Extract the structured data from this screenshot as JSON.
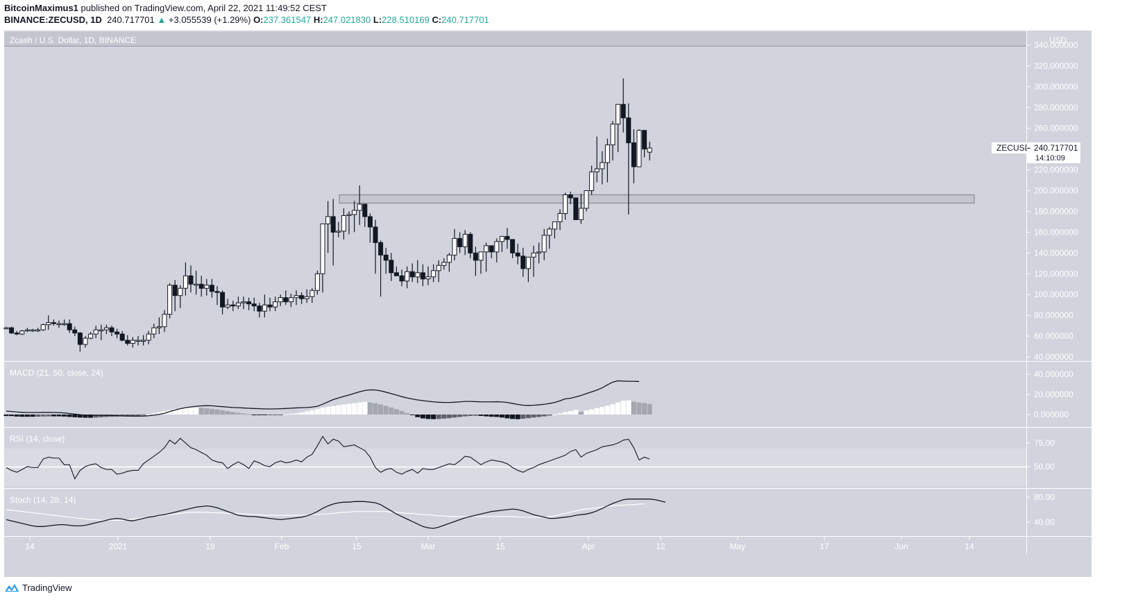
{
  "header": {
    "publisher": "BitcoinMaximus1",
    "published_text": "published on TradingView.com, April 22, 2021 11:49:52 CEST",
    "symbol_line": "BINANCE:ZECUSD, 1D",
    "last": "240.717701",
    "change": "+3.055539 (+1.29%)",
    "o_label": "O:",
    "o": "237.361547",
    "h_label": "H:",
    "h": "247.021830",
    "l_label": "L:",
    "l": "228.510169",
    "c_label": "C:",
    "c": "240.717701"
  },
  "chart": {
    "title": "Zcash / U.S. Dollar, 1D, BINANCE",
    "currency": "USD",
    "price_tag": {
      "symbol": "ZECUSD",
      "value": "240.717701",
      "countdown": "14:10:09"
    }
  },
  "footer": {
    "brand": "TradingView"
  },
  "colors": {
    "background": "#d1d4dc",
    "up_body": "#ffffff",
    "down_body": "#131722",
    "wick": "#131722",
    "zone_fill": "#c3c6cf",
    "zone_stroke": "#8a8c93"
  },
  "chart_data": [
    {
      "type": "candlestick",
      "title": "Zcash / U.S. Dollar, 1D, BINANCE",
      "ylabel": "USD",
      "ylim": [
        40,
        340
      ],
      "y_ticks": [
        "340.000000",
        "320.000000",
        "300.000000",
        "280.000000",
        "260.000000",
        "240.000000",
        "220.000000",
        "200.000000",
        "180.000000",
        "160.000000",
        "140.000000",
        "120.000000",
        "100.000000",
        "80.000000",
        "60.000000",
        "40.000000"
      ],
      "x_ticks": [
        "14",
        "2021",
        "18",
        "Feb",
        "15",
        "Mar",
        "15",
        "Apr",
        "12",
        "May",
        "17",
        "Jun",
        "14"
      ],
      "horizontal_zone": {
        "from": 188,
        "to": 196,
        "start": "Feb 11",
        "end": "Jun 15"
      },
      "start_date": "2020-12-11",
      "ohlc": [
        [
          68,
          69,
          67,
          68
        ],
        [
          68,
          69,
          62,
          63
        ],
        [
          63,
          65,
          61,
          62
        ],
        [
          62,
          66,
          61,
          65
        ],
        [
          65,
          68,
          64,
          66
        ],
        [
          66,
          67,
          64,
          66
        ],
        [
          66,
          68,
          64,
          66
        ],
        [
          66,
          72,
          65,
          71
        ],
        [
          71,
          80,
          66,
          73
        ],
        [
          73,
          76,
          70,
          72
        ],
        [
          72,
          75,
          68,
          72
        ],
        [
          72,
          76,
          70,
          72
        ],
        [
          72,
          76,
          63,
          66
        ],
        [
          66,
          69,
          60,
          63
        ],
        [
          63,
          64,
          45,
          52
        ],
        [
          52,
          60,
          49,
          58
        ],
        [
          58,
          64,
          57,
          62
        ],
        [
          62,
          70,
          58,
          66
        ],
        [
          66,
          71,
          56,
          66
        ],
        [
          66,
          71,
          62,
          68
        ],
        [
          68,
          70,
          60,
          64
        ],
        [
          64,
          67,
          58,
          62
        ],
        [
          62,
          65,
          55,
          56
        ],
        [
          56,
          61,
          51,
          53
        ],
        [
          53,
          59,
          49,
          56
        ],
        [
          56,
          60,
          51,
          56
        ],
        [
          56,
          61,
          51,
          56
        ],
        [
          56,
          65,
          52,
          62
        ],
        [
          62,
          72,
          58,
          68
        ],
        [
          68,
          78,
          62,
          69
        ],
        [
          69,
          85,
          64,
          81
        ],
        [
          81,
          111,
          77,
          109
        ],
        [
          109,
          114,
          84,
          99
        ],
        [
          99,
          109,
          87,
          106
        ],
        [
          106,
          131,
          99,
          118
        ],
        [
          118,
          128,
          102,
          110
        ],
        [
          110,
          123,
          100,
          110
        ],
        [
          110,
          118,
          98,
          106
        ],
        [
          106,
          115,
          99,
          109
        ],
        [
          109,
          115,
          97,
          103
        ],
        [
          103,
          108,
          90,
          102
        ],
        [
          102,
          104,
          81,
          88
        ],
        [
          88,
          96,
          86,
          90
        ],
        [
          90,
          94,
          84,
          89
        ],
        [
          89,
          98,
          86,
          92
        ],
        [
          92,
          98,
          86,
          93
        ],
        [
          93,
          97,
          85,
          91
        ],
        [
          91,
          97,
          84,
          89
        ],
        [
          89,
          92,
          78,
          84
        ],
        [
          84,
          100,
          78,
          90
        ],
        [
          90,
          97,
          84,
          88
        ],
        [
          88,
          98,
          84,
          93
        ],
        [
          93,
          100,
          89,
          97
        ],
        [
          97,
          104,
          90,
          93
        ],
        [
          93,
          101,
          88,
          97
        ],
        [
          97,
          104,
          90,
          99
        ],
        [
          99,
          102,
          91,
          96
        ],
        [
          96,
          105,
          92,
          98
        ],
        [
          98,
          106,
          92,
          104
        ],
        [
          104,
          123,
          100,
          120
        ],
        [
          120,
          148,
          102,
          168
        ],
        [
          168,
          190,
          140,
          175
        ],
        [
          175,
          192,
          128,
          160
        ],
        [
          160,
          170,
          155,
          161
        ],
        [
          161,
          183,
          153,
          176
        ],
        [
          176,
          180,
          158,
          177
        ],
        [
          177,
          190,
          160,
          181
        ],
        [
          181,
          205,
          167,
          187
        ],
        [
          187,
          186,
          165,
          175
        ],
        [
          175,
          178,
          150,
          165
        ],
        [
          165,
          172,
          120,
          150
        ],
        [
          150,
          152,
          98,
          138
        ],
        [
          138,
          145,
          120,
          133
        ],
        [
          133,
          140,
          113,
          121
        ],
        [
          121,
          127,
          118,
          118
        ],
        [
          118,
          124,
          108,
          113
        ],
        [
          113,
          127,
          106,
          122
        ],
        [
          122,
          130,
          112,
          117
        ],
        [
          117,
          133,
          111,
          121
        ],
        [
          121,
          129,
          108,
          115
        ],
        [
          115,
          127,
          109,
          117
        ],
        [
          117,
          129,
          112,
          123
        ],
        [
          123,
          133,
          112,
          128
        ],
        [
          128,
          135,
          124,
          131
        ],
        [
          131,
          140,
          122,
          138
        ],
        [
          138,
          163,
          133,
          154
        ],
        [
          154,
          160,
          140,
          146
        ],
        [
          146,
          162,
          138,
          158
        ],
        [
          158,
          160,
          135,
          140
        ],
        [
          140,
          146,
          118,
          133
        ],
        [
          133,
          140,
          120,
          141
        ],
        [
          141,
          150,
          122,
          147
        ],
        [
          147,
          145,
          135,
          141
        ],
        [
          141,
          154,
          131,
          151
        ],
        [
          151,
          155,
          141,
          156
        ],
        [
          156,
          164,
          144,
          153
        ],
        [
          153,
          152,
          135,
          140
        ],
        [
          140,
          149,
          129,
          137
        ],
        [
          137,
          145,
          117,
          125
        ],
        [
          125,
          134,
          112,
          136
        ],
        [
          136,
          147,
          117,
          140
        ],
        [
          140,
          150,
          130,
          141
        ],
        [
          141,
          163,
          133,
          157
        ],
        [
          157,
          165,
          144,
          163
        ],
        [
          163,
          168,
          154,
          170
        ],
        [
          170,
          182,
          162,
          178
        ],
        [
          178,
          198,
          172,
          196
        ],
        [
          196,
          199,
          187,
          193
        ],
        [
          193,
          185,
          172,
          172
        ],
        [
          172,
          197,
          168,
          183
        ],
        [
          183,
          200,
          180,
          200
        ],
        [
          200,
          224,
          196,
          218
        ],
        [
          218,
          252,
          208,
          221
        ],
        [
          221,
          238,
          206,
          227
        ],
        [
          227,
          250,
          208,
          244
        ],
        [
          244,
          267,
          229,
          264
        ],
        [
          264,
          280,
          237,
          283
        ],
        [
          283,
          308,
          256,
          270
        ],
        [
          270,
          284,
          177,
          246
        ],
        [
          246,
          259,
          207,
          223
        ],
        [
          223,
          259,
          228,
          258
        ],
        [
          258,
          256,
          232,
          240
        ],
        [
          237,
          247,
          229,
          241
        ]
      ]
    },
    {
      "type": "line+histogram",
      "title": "MACD (21, 50, close, 24)",
      "y_ticks": [
        "40.000000",
        "20.000000",
        "0.000000"
      ],
      "ylim": [
        -5,
        42
      ],
      "macd_line": [
        3.5,
        3.0,
        2.5,
        2.2,
        2.0,
        2.0,
        2.0,
        2.1,
        2.1,
        2.0,
        1.9,
        1.6,
        1.0,
        0.4,
        -0.2,
        -0.6,
        -0.7,
        -0.8,
        -0.8,
        -0.9,
        -1.0,
        -1.2,
        -1.4,
        -1.5,
        -1.6,
        -1.6,
        -1.5,
        -1.2,
        -0.6,
        0.2,
        1.2,
        3.0,
        4.5,
        5.8,
        6.8,
        7.6,
        8.2,
        8.6,
        8.8,
        8.7,
        8.2,
        7.8,
        7.4,
        7.0,
        6.8,
        6.5,
        6.2,
        6.0,
        5.8,
        5.6,
        5.5,
        5.6,
        5.8,
        6.0,
        6.3,
        6.6,
        6.8,
        7.0,
        7.4,
        8.2,
        10.2,
        12.6,
        14.8,
        16.5,
        18.0,
        19.4,
        21.0,
        22.6,
        23.9,
        24.5,
        24.4,
        23.5,
        22.2,
        20.8,
        19.3,
        17.8,
        16.5,
        15.4,
        14.5,
        13.8,
        13.2,
        12.6,
        12.2,
        12.0,
        12.0,
        12.2,
        12.6,
        13.0,
        13.0,
        12.8,
        12.6,
        12.6,
        12.6,
        12.7,
        12.5,
        12.0,
        11.0,
        10.0,
        9.2,
        9.0,
        9.2,
        9.6,
        10.2,
        11.0,
        12.0,
        13.6,
        15.6,
        16.2,
        17.5,
        19.0,
        20.8,
        22.5,
        24.3,
        26.5,
        29.5,
        32.2,
        33.5,
        33.2,
        33.0,
        33.0,
        32.8
      ],
      "histogram": [
        -1.5,
        -1.5,
        -2.0,
        -2.2,
        -2.2,
        -2.2,
        -2.1,
        -1.9,
        -1.8,
        -1.8,
        -1.8,
        -2.0,
        -2.4,
        -2.7,
        -3.0,
        -3.2,
        -3.2,
        -3.0,
        -2.7,
        -2.4,
        -2.2,
        -2.0,
        -1.8,
        -1.6,
        -1.3,
        -1.0,
        -0.6,
        0.2,
        1.2,
        2.4,
        3.5,
        4.6,
        5.5,
        6.1,
        6.5,
        6.8,
        6.8,
        6.6,
        6.2,
        5.6,
        5.0,
        4.2,
        3.4,
        2.6,
        1.8,
        1.0,
        0.4,
        -0.4,
        -0.6,
        -0.6,
        -0.5,
        -0.4,
        -0.2,
        0.2,
        0.6,
        1.2,
        2.0,
        3.2,
        4.4,
        5.6,
        6.8,
        7.7,
        8.4,
        9.2,
        10.0,
        10.6,
        11.2,
        12.0,
        12.5,
        12.0,
        11.2,
        10.0,
        8.6,
        7.0,
        5.4,
        3.6,
        1.6,
        -0.6,
        -2.6,
        -3.8,
        -4.4,
        -4.6,
        -4.4,
        -4.0,
        -3.6,
        -3.0,
        -2.4,
        -1.8,
        -1.4,
        -1.2,
        -1.4,
        -1.8,
        -2.2,
        -2.4,
        -3.0,
        -3.8,
        -4.4,
        -4.6,
        -4.2,
        -3.6,
        -3.0,
        -2.4,
        -1.8,
        -1.0,
        0.0,
        1.2,
        2.4,
        3.4,
        4.6,
        2.6,
        4.0,
        5.2,
        6.4,
        7.6,
        8.8,
        10.2,
        12.0,
        13.8,
        14.0,
        12.8,
        12.0,
        11.4,
        10.6
      ]
    },
    {
      "type": "line",
      "title": "RSI (14, close)",
      "y_ticks": [
        "75.00",
        "50.00"
      ],
      "bands": [
        30,
        70
      ],
      "midline": 50,
      "values": [
        49,
        46,
        44,
        47,
        50,
        49,
        49,
        58,
        60,
        59,
        59,
        52,
        52,
        37,
        46,
        50,
        52,
        53,
        49,
        47,
        47,
        42,
        43,
        45,
        46,
        46,
        53,
        57,
        61,
        65,
        70,
        78,
        74,
        80,
        75,
        70,
        68,
        65,
        62,
        57,
        55,
        54,
        48,
        52,
        55,
        52,
        48,
        56,
        54,
        51,
        50,
        54,
        56,
        54,
        55,
        57,
        55,
        60,
        63,
        72,
        82,
        74,
        79,
        77,
        71,
        72,
        73,
        70,
        67,
        60,
        49,
        44,
        47,
        48,
        44,
        42,
        45,
        47,
        43,
        48,
        47,
        47,
        49,
        51,
        53,
        52,
        56,
        61,
        60,
        56,
        52,
        55,
        57,
        56,
        55,
        53,
        49,
        46,
        44,
        47,
        49,
        52,
        54,
        56,
        58,
        60,
        62,
        66,
        68,
        60,
        64,
        66,
        68,
        71,
        72,
        73,
        75,
        78,
        79,
        70,
        57,
        60,
        58
      ]
    },
    {
      "type": "line",
      "title": "Stoch (14, 28, 14)",
      "y_ticks": [
        "80.00",
        "40.00"
      ],
      "k_values": [
        44,
        42,
        40,
        38,
        36,
        34,
        33,
        33,
        34,
        35,
        36,
        36,
        35,
        34,
        34,
        35,
        37,
        39,
        41,
        43,
        45,
        46,
        45,
        43,
        42,
        44,
        46,
        48,
        49,
        51,
        52,
        54,
        56,
        58,
        60,
        62,
        64,
        65,
        66,
        65,
        63,
        60,
        57,
        54,
        51,
        50,
        49,
        49,
        48,
        47,
        46,
        45,
        44,
        45,
        46,
        47,
        48,
        50,
        53,
        57,
        62,
        66,
        69,
        71,
        72,
        72,
        73,
        73,
        73,
        72,
        71,
        68,
        63,
        58,
        53,
        49,
        45,
        41,
        37,
        33,
        31,
        30,
        32,
        35,
        38,
        41,
        44,
        47,
        49,
        51,
        53,
        55,
        57,
        58,
        59,
        60,
        61,
        60,
        58,
        55,
        52,
        50,
        48,
        46,
        46,
        47,
        48,
        49,
        51,
        52,
        53,
        55,
        58,
        62,
        66,
        70,
        73,
        76,
        77,
        77,
        77,
        77,
        77,
        76,
        74,
        72
      ],
      "d_values": [
        60,
        59,
        58,
        57,
        56,
        55,
        54,
        53,
        52,
        51,
        50,
        49,
        48,
        47,
        46,
        45,
        44,
        44,
        43,
        43,
        43,
        43,
        43,
        44,
        45,
        46,
        47,
        48,
        49,
        50,
        51,
        52,
        53,
        54,
        55,
        56,
        56,
        56,
        56,
        55,
        55,
        55,
        54,
        54,
        54,
        53,
        53,
        52,
        52,
        51,
        51,
        51,
        51,
        51,
        51,
        51,
        51,
        51,
        52,
        52,
        53,
        53,
        54,
        55,
        56,
        56,
        57,
        57,
        57,
        57,
        57,
        57,
        57,
        56,
        56,
        55,
        54,
        54,
        53,
        52,
        52,
        51,
        50,
        50,
        49,
        49,
        49,
        49,
        49,
        49,
        49,
        49,
        49,
        49,
        49,
        49,
        49,
        48,
        48,
        48,
        48,
        48,
        48,
        49,
        50,
        52,
        54,
        56,
        58,
        60,
        61,
        62,
        63,
        64,
        65,
        66,
        67,
        67,
        68,
        68,
        69,
        69
      ]
    }
  ]
}
